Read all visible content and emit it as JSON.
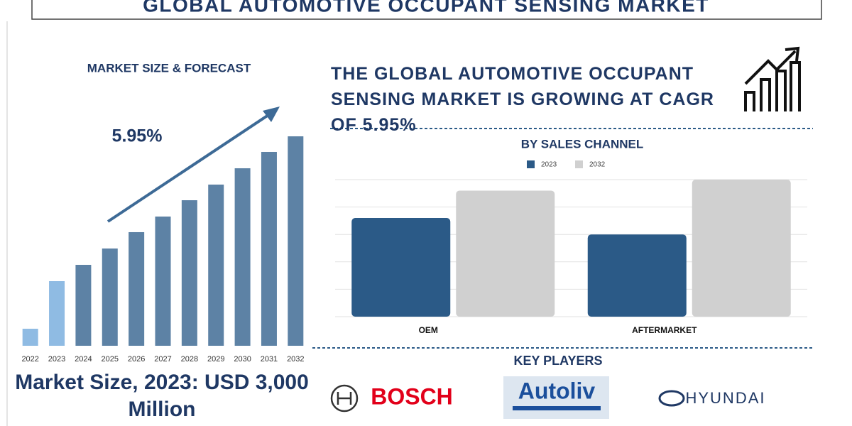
{
  "title": "GLOBAL AUTOMOTIVE OCCUPANT SENSING MARKET",
  "headline": "THE GLOBAL AUTOMOTIVE OCCUPANT SENSING MARKET IS GROWING AT CAGR OF 5.95%",
  "market_size": "Market Size, 2023: USD 3,000 Million",
  "key_players": {
    "title": "KEY PLAYERS",
    "names": [
      "BOSCH",
      "Autoliv",
      "HYUNDAI"
    ]
  },
  "chart_data": [
    {
      "type": "bar",
      "title": "MARKET SIZE & FORECAST",
      "annotation": "5.95%",
      "categories": [
        "2022",
        "2023",
        "2024",
        "2025",
        "2026",
        "2027",
        "2028",
        "2029",
        "2030",
        "2031",
        "2032"
      ],
      "values": [
        791,
        3000,
        3758,
        4516,
        5275,
        6000,
        6758,
        7484,
        8242,
        9000,
        9725
      ],
      "colors": [
        "#8fbbe3",
        "#8fbbe3",
        "#5d82a5",
        "#5d82a5",
        "#5d82a5",
        "#5d82a5",
        "#5d82a5",
        "#5d82a5",
        "#5d82a5",
        "#5d82a5",
        "#5d82a5"
      ]
    },
    {
      "type": "grouped_bar",
      "title": "BY SALES CHANNEL",
      "categories": [
        "OEM",
        "AFTERMARKET"
      ],
      "series": [
        {
          "name": "2023",
          "color": "#2b5a87",
          "values": [
            3.6,
            3.0
          ]
        },
        {
          "name": "2032",
          "color": "#d0d0d0",
          "values": [
            4.6,
            5.0
          ]
        }
      ],
      "ylim": [
        0,
        5
      ],
      "yticks": [
        0,
        1,
        2,
        3,
        4,
        5
      ],
      "grid": true
    }
  ]
}
